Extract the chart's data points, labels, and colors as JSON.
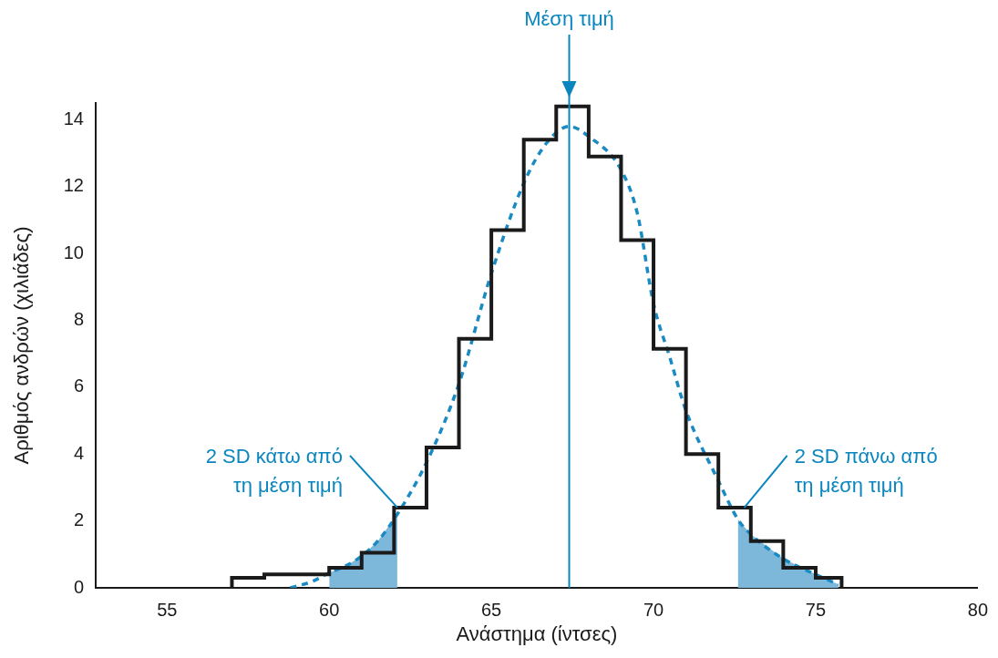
{
  "chart_data": {
    "type": "histogram",
    "xlabel": "Ανάστημα (ίντσες)",
    "ylabel": "Αριθμός ανδρών (χιλιάδες)",
    "bins": [
      57,
      58,
      60,
      61,
      62,
      63,
      64,
      65,
      66,
      67,
      68,
      69,
      70,
      71,
      72,
      73,
      74,
      75,
      75.8
    ],
    "values": [
      0.3,
      0.4,
      0.6,
      1.05,
      2.4,
      4.2,
      7.45,
      10.7,
      13.4,
      14.4,
      12.9,
      10.4,
      7.15,
      4.0,
      2.4,
      1.4,
      0.6,
      0.3
    ],
    "color": "#1a1a1a",
    "series": [
      {
        "type": "area",
        "color": "#7db8da",
        "x": [
          60,
          60.5,
          61,
          61.5,
          62.1
        ],
        "values": [
          0.45,
          0.65,
          0.95,
          1.4,
          2.2
        ]
      },
      {
        "type": "area",
        "color": "#7db8da",
        "x": [
          72.6,
          73,
          74,
          75,
          75.7
        ],
        "values": [
          2.05,
          1.6,
          0.87,
          0.4,
          0.1
        ]
      },
      {
        "type": "line",
        "color": "#1a8ac2",
        "line_style": "dashed",
        "x": [
          58.8,
          59.5,
          60,
          60.5,
          61,
          61.5,
          62.1,
          63,
          64,
          65,
          66,
          66.7,
          67.4,
          68,
          69,
          69.5,
          70,
          70.5,
          71,
          72,
          72.6,
          73,
          74,
          75,
          75.7
        ],
        "values": [
          0,
          0.2,
          0.45,
          0.65,
          0.95,
          1.4,
          2.2,
          3.75,
          6.1,
          9.4,
          12.1,
          13.3,
          13.8,
          13.5,
          12.5,
          11.2,
          8.5,
          6.9,
          5.3,
          3.2,
          2.05,
          1.6,
          0.87,
          0.4,
          0.1
        ]
      }
    ],
    "xlim": [
      52.8,
      80
    ],
    "xticks": [
      55,
      60,
      65,
      70,
      75,
      80
    ],
    "ylim": [
      0,
      14.5
    ],
    "yticks": [
      0,
      2,
      4,
      6,
      8,
      10,
      12,
      14
    ],
    "grid": false,
    "legend": false,
    "ref_lines": [
      {
        "axis": "x",
        "value": 67.4,
        "label": "Μέση τιμή",
        "color": "#0a86bf"
      }
    ],
    "annotations": [
      {
        "text": "2 SD κάτω από\nτη μέση τιμή",
        "x": 62.1,
        "y": 2.4
      },
      {
        "text": "2 SD πάνω από\nτη μέση τιμή",
        "x": 72.8,
        "y": 2.4
      }
    ]
  }
}
